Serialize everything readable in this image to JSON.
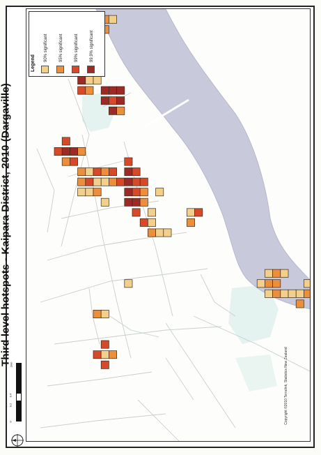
{
  "map": {
    "title": "Third level hotspots - Kaipara District, 2010 (Dargaville)",
    "legend": {
      "title": "Legend",
      "items": [
        {
          "label": "90% significant",
          "color": "#f2cf8a"
        },
        {
          "label": "95% significant",
          "color": "#eb8f3c"
        },
        {
          "label": "99% significant",
          "color": "#d8492a"
        },
        {
          "label": "99.9% significant",
          "color": "#9c2a26"
        }
      ]
    },
    "scale": {
      "ticks": [
        "0",
        "0.2",
        "0.4",
        "1km"
      ]
    },
    "copyright": "Copyright ©2010 Terralink, Statistics New Zealand",
    "colors": {
      "river": "#c9c9dc",
      "park": "#e4f3ef",
      "roads": "#c8cfd0"
    }
  }
}
